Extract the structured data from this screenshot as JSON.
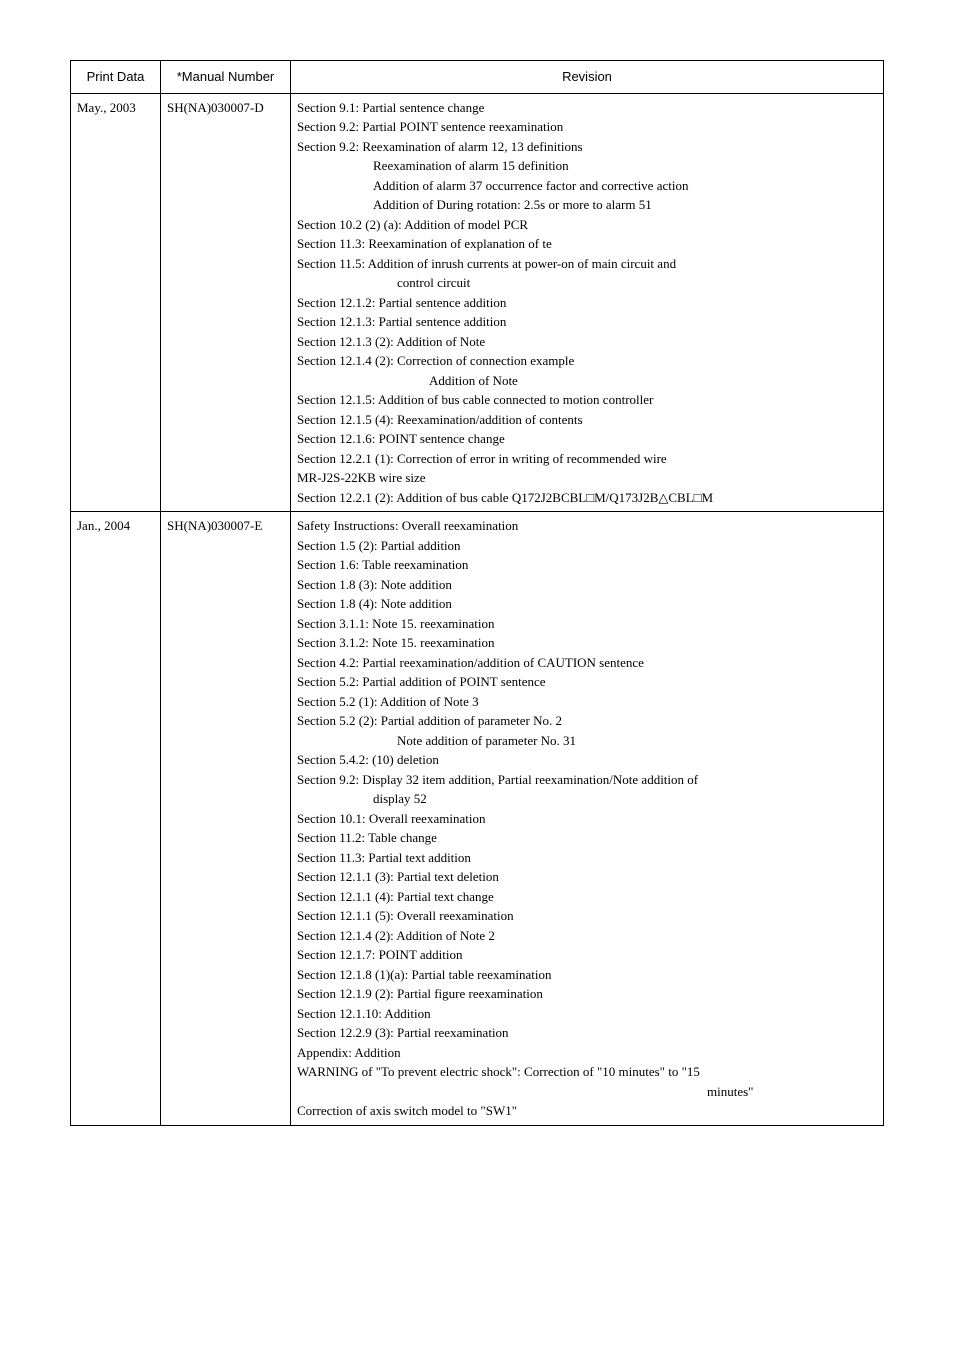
{
  "headers": {
    "col1": "Print Data",
    "col2": "*Manual Number",
    "col3": "Revision"
  },
  "rows": [
    {
      "print_data": "May., 2003",
      "manual_number": "SH(NA)030007-D",
      "lines": [
        {
          "t": "Section 9.1: Partial sentence change",
          "cls": ""
        },
        {
          "t": "Section 9.2: Partial POINT sentence reexamination",
          "cls": ""
        },
        {
          "t": "Section 9.2: Reexamination of alarm 12, 13 definitions",
          "cls": ""
        },
        {
          "t": "Reexamination of alarm 15 definition",
          "cls": "ind1"
        },
        {
          "t": "Addition of alarm 37 occurrence factor and corrective action",
          "cls": "ind1"
        },
        {
          "t": "Addition of During rotation: 2.5s or more to alarm 51",
          "cls": "ind1"
        },
        {
          "t": "Section 10.2 (2) (a): Addition of model PCR",
          "cls": ""
        },
        {
          "t": "Section 11.3: Reexamination of explanation of te",
          "cls": ""
        },
        {
          "t": "Section 11.5: Addition of inrush currents at power-on of main circuit and",
          "cls": ""
        },
        {
          "t": "control circuit",
          "cls": "ind2"
        },
        {
          "t": "Section 12.1.2: Partial sentence addition",
          "cls": ""
        },
        {
          "t": "Section 12.1.3: Partial sentence addition",
          "cls": ""
        },
        {
          "t": "Section 12.1.3 (2): Addition of Note",
          "cls": ""
        },
        {
          "t": "Section 12.1.4 (2): Correction of connection example",
          "cls": ""
        },
        {
          "t": "Addition of Note",
          "cls": "ind3"
        },
        {
          "t": "Section 12.1.5: Addition of bus cable connected to motion controller",
          "cls": ""
        },
        {
          "t": "Section 12.1.5 (4): Reexamination/addition of contents",
          "cls": ""
        },
        {
          "t": "Section 12.1.6: POINT sentence change",
          "cls": ""
        },
        {
          "t": "Section 12.2.1 (1): Correction of error in writing of recommended wire",
          "cls": ""
        },
        {
          "t": "MR-J2S-22KB wire size",
          "cls": ""
        },
        {
          "t": "Section 12.2.1 (2): Addition of bus cable Q172J2BCBL□M/Q173J2B△CBL□M",
          "cls": ""
        }
      ]
    },
    {
      "print_data": "Jan., 2004",
      "manual_number": "SH(NA)030007-E",
      "lines": [
        {
          "t": "Safety Instructions: Overall reexamination",
          "cls": ""
        },
        {
          "t": "Section 1.5 (2): Partial addition",
          "cls": ""
        },
        {
          "t": "Section 1.6: Table reexamination",
          "cls": ""
        },
        {
          "t": "Section 1.8 (3): Note addition",
          "cls": ""
        },
        {
          "t": "Section 1.8 (4): Note addition",
          "cls": ""
        },
        {
          "t": "Section 3.1.1: Note 15. reexamination",
          "cls": ""
        },
        {
          "t": "Section 3.1.2: Note 15. reexamination",
          "cls": ""
        },
        {
          "t": "Section 4.2: Partial reexamination/addition of CAUTION sentence",
          "cls": ""
        },
        {
          "t": "Section 5.2: Partial addition of POINT sentence",
          "cls": ""
        },
        {
          "t": "Section 5.2 (1): Addition of Note 3",
          "cls": ""
        },
        {
          "t": "Section 5.2 (2): Partial addition of parameter No. 2",
          "cls": ""
        },
        {
          "t": "Note addition of parameter No. 31",
          "cls": "ind2"
        },
        {
          "t": "Section 5.4.2: (10) deletion",
          "cls": ""
        },
        {
          "t": "Section 9.2: Display 32 item addition, Partial reexamination/Note addition of",
          "cls": ""
        },
        {
          "t": "display 52",
          "cls": "ind1"
        },
        {
          "t": "Section 10.1: Overall reexamination",
          "cls": ""
        },
        {
          "t": "Section 11.2: Table change",
          "cls": ""
        },
        {
          "t": "Section 11.3: Partial text addition",
          "cls": ""
        },
        {
          "t": "Section 12.1.1 (3): Partial text deletion",
          "cls": ""
        },
        {
          "t": "Section 12.1.1 (4): Partial text change",
          "cls": ""
        },
        {
          "t": "Section 12.1.1 (5): Overall reexamination",
          "cls": ""
        },
        {
          "t": "Section 12.1.4 (2): Addition of Note 2",
          "cls": ""
        },
        {
          "t": "Section 12.1.7: POINT addition",
          "cls": ""
        },
        {
          "t": "Section 12.1.8 (1)(a): Partial table reexamination",
          "cls": ""
        },
        {
          "t": "Section 12.1.9 (2): Partial figure reexamination",
          "cls": ""
        },
        {
          "t": "Section 12.1.10: Addition",
          "cls": ""
        },
        {
          "t": "Section 12.2.9 (3): Partial reexamination",
          "cls": ""
        },
        {
          "t": "Appendix: Addition",
          "cls": "ind-app"
        },
        {
          "t": "WARNING of \"To prevent electric shock\": Correction of \"10 minutes\" to \"15",
          "cls": ""
        },
        {
          "t": "minutes\"",
          "cls": "ind-wide"
        },
        {
          "t": "Correction of axis switch model to \"SW1\"",
          "cls": ""
        }
      ]
    }
  ]
}
